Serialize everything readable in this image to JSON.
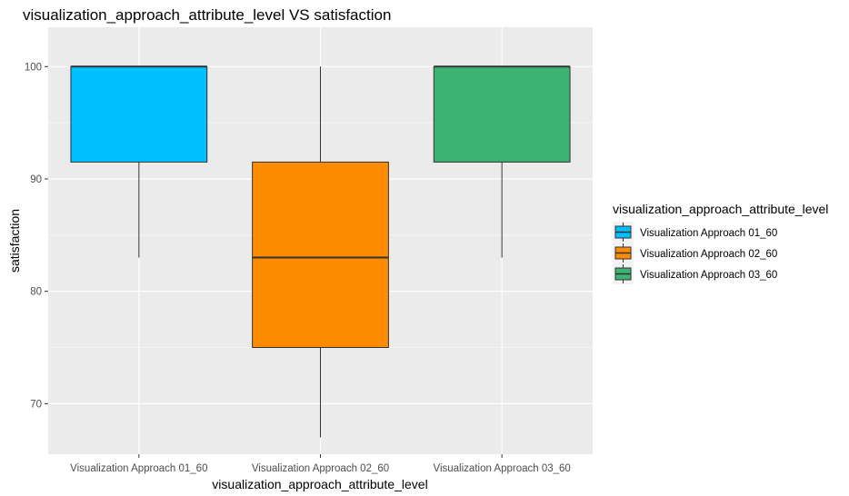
{
  "chart_data": {
    "type": "boxplot",
    "title": "visualization_approach_attribute_level VS satisfaction",
    "xlabel": "visualization_approach_attribute_level",
    "ylabel": "satisfaction",
    "ylim": [
      65.5,
      103.5
    ],
    "yticks": [
      70,
      80,
      90,
      100
    ],
    "grid": true,
    "legend_position": "right",
    "legend_title": "visualization_approach_attribute_level",
    "categories": [
      "Visualization Approach 01_60",
      "Visualization Approach 02_60",
      "Visualization Approach 03_60"
    ],
    "boxes": [
      {
        "name": "Visualization Approach 01_60",
        "min": 83,
        "q1": 91.5,
        "median": 100,
        "q3": 100,
        "max": 100,
        "color": "#00bfff"
      },
      {
        "name": "Visualization Approach 02_60",
        "min": 67,
        "q1": 75,
        "median": 83,
        "q3": 91.5,
        "max": 100,
        "color": "#ff8c00"
      },
      {
        "name": "Visualization Approach 03_60",
        "min": 83,
        "q1": 91.5,
        "median": 100,
        "q3": 100,
        "max": 100,
        "color": "#3cb371"
      }
    ]
  }
}
